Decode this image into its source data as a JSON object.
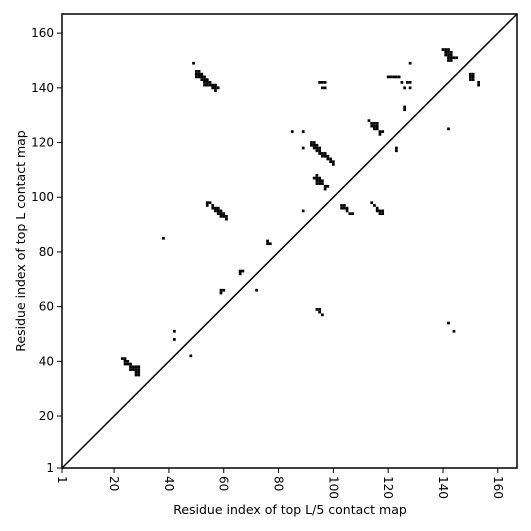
{
  "chart_data": {
    "type": "scatter",
    "xlabel": "Residue index of top L/5 contact map",
    "ylabel": "Residue index of top L contact map",
    "xlim": [
      1,
      167
    ],
    "ylim": [
      1,
      167
    ],
    "xticks": [
      1,
      20,
      40,
      60,
      80,
      100,
      120,
      140,
      160
    ],
    "yticks": [
      1,
      20,
      40,
      60,
      80,
      100,
      120,
      140,
      160
    ],
    "diagonal": true,
    "marker": "square",
    "color": "#000000",
    "points": [
      [
        49,
        149
      ],
      [
        50,
        146
      ],
      [
        50,
        145
      ],
      [
        51,
        146
      ],
      [
        51,
        145
      ],
      [
        51,
        144
      ],
      [
        50,
        144
      ],
      [
        52,
        145
      ],
      [
        52,
        144
      ],
      [
        52,
        143
      ],
      [
        53,
        144
      ],
      [
        53,
        143
      ],
      [
        53,
        142
      ],
      [
        54,
        143
      ],
      [
        54,
        142
      ],
      [
        54,
        141
      ],
      [
        53,
        141
      ],
      [
        55,
        142
      ],
      [
        55,
        141
      ],
      [
        56,
        141
      ],
      [
        56,
        140
      ],
      [
        57,
        141
      ],
      [
        57,
        140
      ],
      [
        58,
        140
      ],
      [
        57,
        139
      ],
      [
        95,
        142
      ],
      [
        96,
        142
      ],
      [
        97,
        142
      ],
      [
        96,
        140
      ],
      [
        97,
        140
      ],
      [
        120,
        144
      ],
      [
        121,
        144
      ],
      [
        122,
        144
      ],
      [
        123,
        144
      ],
      [
        124,
        144
      ],
      [
        125,
        142
      ],
      [
        127,
        142
      ],
      [
        128,
        142
      ],
      [
        128,
        140
      ],
      [
        126,
        140
      ],
      [
        128,
        149
      ],
      [
        140,
        154
      ],
      [
        141,
        154
      ],
      [
        142,
        154
      ],
      [
        141,
        153
      ],
      [
        142,
        153
      ],
      [
        143,
        153
      ],
      [
        141,
        152
      ],
      [
        142,
        152
      ],
      [
        143,
        152
      ],
      [
        142,
        151
      ],
      [
        143,
        151
      ],
      [
        144,
        151
      ],
      [
        145,
        151
      ],
      [
        142,
        150
      ],
      [
        143,
        150
      ],
      [
        150,
        145
      ],
      [
        151,
        145
      ],
      [
        150,
        144
      ],
      [
        151,
        144
      ],
      [
        150,
        143
      ],
      [
        151,
        143
      ],
      [
        153,
        142
      ],
      [
        153,
        141
      ],
      [
        85,
        124
      ],
      [
        89,
        124
      ],
      [
        89,
        118
      ],
      [
        92,
        120
      ],
      [
        93,
        120
      ],
      [
        92,
        119
      ],
      [
        93,
        119
      ],
      [
        94,
        119
      ],
      [
        93,
        118
      ],
      [
        94,
        118
      ],
      [
        95,
        118
      ],
      [
        94,
        117
      ],
      [
        95,
        117
      ],
      [
        95,
        116
      ],
      [
        96,
        116
      ],
      [
        96,
        115
      ],
      [
        97,
        116
      ],
      [
        97,
        115
      ],
      [
        98,
        115
      ],
      [
        98,
        114
      ],
      [
        99,
        114
      ],
      [
        99,
        113
      ],
      [
        100,
        113
      ],
      [
        100,
        112
      ],
      [
        113,
        128
      ],
      [
        114,
        127
      ],
      [
        115,
        127
      ],
      [
        116,
        127
      ],
      [
        114,
        126
      ],
      [
        115,
        126
      ],
      [
        116,
        126
      ],
      [
        115,
        125
      ],
      [
        116,
        125
      ],
      [
        117,
        124
      ],
      [
        118,
        124
      ],
      [
        117,
        123
      ],
      [
        123,
        118
      ],
      [
        123,
        117
      ],
      [
        126,
        133
      ],
      [
        126,
        132
      ],
      [
        142,
        125
      ],
      [
        94,
        108
      ],
      [
        93,
        107
      ],
      [
        94,
        107
      ],
      [
        95,
        107
      ],
      [
        94,
        106
      ],
      [
        95,
        106
      ],
      [
        96,
        106
      ],
      [
        94,
        105
      ],
      [
        95,
        105
      ],
      [
        96,
        105
      ],
      [
        97,
        104
      ],
      [
        98,
        104
      ],
      [
        97,
        103
      ],
      [
        89,
        95
      ],
      [
        54,
        98
      ],
      [
        55,
        98
      ],
      [
        54,
        97
      ],
      [
        56,
        97
      ],
      [
        56,
        96
      ],
      [
        57,
        96
      ],
      [
        58,
        96
      ],
      [
        57,
        95
      ],
      [
        58,
        95
      ],
      [
        59,
        95
      ],
      [
        58,
        94
      ],
      [
        59,
        94
      ],
      [
        60,
        94
      ],
      [
        59,
        93
      ],
      [
        60,
        93
      ],
      [
        61,
        93
      ],
      [
        61,
        92
      ],
      [
        103,
        97
      ],
      [
        104,
        97
      ],
      [
        103,
        96
      ],
      [
        104,
        96
      ],
      [
        105,
        96
      ],
      [
        105,
        95
      ],
      [
        106,
        94
      ],
      [
        107,
        94
      ],
      [
        114,
        98
      ],
      [
        115,
        97
      ],
      [
        116,
        96
      ],
      [
        116,
        95
      ],
      [
        117,
        95
      ],
      [
        118,
        95
      ],
      [
        117,
        94
      ],
      [
        118,
        94
      ],
      [
        38,
        85
      ],
      [
        76,
        84
      ],
      [
        76,
        83
      ],
      [
        77,
        83
      ],
      [
        66,
        73
      ],
      [
        67,
        73
      ],
      [
        66,
        72
      ],
      [
        59,
        66
      ],
      [
        60,
        66
      ],
      [
        59,
        65
      ],
      [
        72,
        66
      ],
      [
        94,
        59
      ],
      [
        95,
        59
      ],
      [
        95,
        58
      ],
      [
        96,
        57
      ],
      [
        142,
        54
      ],
      [
        144,
        51
      ],
      [
        42,
        51
      ],
      [
        42,
        48
      ],
      [
        48,
        42
      ],
      [
        23,
        41
      ],
      [
        24,
        41
      ],
      [
        24,
        40
      ],
      [
        25,
        40
      ],
      [
        24,
        39
      ],
      [
        25,
        39
      ],
      [
        26,
        39
      ],
      [
        26,
        38
      ],
      [
        27,
        38
      ],
      [
        28,
        38
      ],
      [
        26,
        37
      ],
      [
        27,
        37
      ],
      [
        28,
        37
      ],
      [
        29,
        38
      ],
      [
        29,
        37
      ],
      [
        28,
        36
      ],
      [
        29,
        36
      ],
      [
        28,
        35
      ],
      [
        29,
        35
      ]
    ]
  }
}
